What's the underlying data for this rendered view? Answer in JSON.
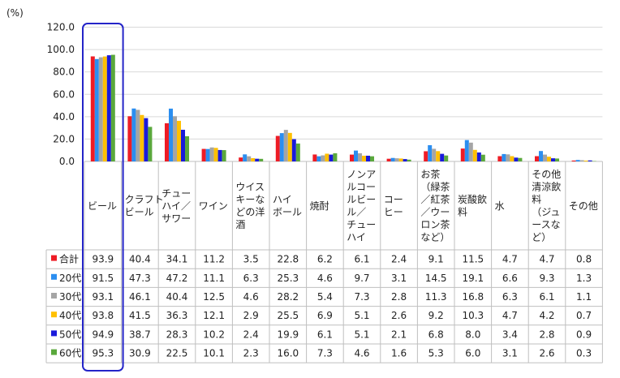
{
  "chart_data": {
    "type": "bar",
    "unit_label": "(%)",
    "ylim": [
      0,
      120
    ],
    "yticks": [
      "0.0",
      "20.0",
      "40.0",
      "60.0",
      "80.0",
      "100.0",
      "120.0"
    ],
    "grid": true,
    "highlight_category_index": 0,
    "categories": [
      [
        "ビール"
      ],
      [
        "クラフト",
        "ビール"
      ],
      [
        "チュー",
        "ハイ／",
        "サワー"
      ],
      [
        "ワイン"
      ],
      [
        "ウイス",
        "キーな",
        "どの洋",
        "酒"
      ],
      [
        "ハイ",
        "ボール"
      ],
      [
        "焼酎"
      ],
      [
        "ノンア",
        "ルコー",
        "ルビー",
        "ル／",
        "チュー",
        "ハイ"
      ],
      [
        "コー",
        "ヒー"
      ],
      [
        "お茶",
        "（緑茶",
        "／紅茶",
        "／ウー",
        "ロン茶",
        "など）"
      ],
      [
        "炭酸飲",
        "料"
      ],
      [
        "水"
      ],
      [
        "その他",
        "清涼飲",
        "料",
        "（ジュ",
        "ースな",
        "ど）"
      ],
      [
        "その他"
      ]
    ],
    "series": [
      {
        "name": "合計",
        "color": "#ee1c25",
        "values": [
          "93.9",
          "40.4",
          "34.1",
          "11.2",
          "3.5",
          "22.8",
          "6.2",
          "6.1",
          "2.4",
          "9.1",
          "11.5",
          "4.7",
          "4.7",
          "0.8"
        ]
      },
      {
        "name": "20代",
        "color": "#2b8ef0",
        "values": [
          "91.5",
          "47.3",
          "47.2",
          "11.1",
          "6.3",
          "25.3",
          "4.6",
          "9.7",
          "3.1",
          "14.5",
          "19.1",
          "6.6",
          "9.3",
          "1.3"
        ]
      },
      {
        "name": "30代",
        "color": "#a5a5a5",
        "values": [
          "93.1",
          "46.1",
          "40.4",
          "12.5",
          "4.6",
          "28.2",
          "5.4",
          "7.3",
          "2.8",
          "11.3",
          "16.8",
          "6.3",
          "6.1",
          "1.1"
        ]
      },
      {
        "name": "40代",
        "color": "#ffc000",
        "values": [
          "93.8",
          "41.5",
          "36.3",
          "12.1",
          "2.9",
          "25.5",
          "6.9",
          "5.1",
          "2.6",
          "9.2",
          "10.3",
          "4.7",
          "4.2",
          "0.7"
        ]
      },
      {
        "name": "50代",
        "color": "#1a1adb",
        "values": [
          "94.9",
          "38.7",
          "28.3",
          "10.2",
          "2.4",
          "19.9",
          "6.1",
          "5.1",
          "2.1",
          "6.8",
          "8.0",
          "3.4",
          "2.8",
          "0.9"
        ]
      },
      {
        "name": "60代",
        "color": "#5aa83c",
        "values": [
          "95.3",
          "30.9",
          "22.5",
          "10.1",
          "2.3",
          "16.0",
          "7.3",
          "4.6",
          "1.6",
          "5.3",
          "6.0",
          "3.1",
          "2.6",
          "0.3"
        ]
      }
    ]
  }
}
